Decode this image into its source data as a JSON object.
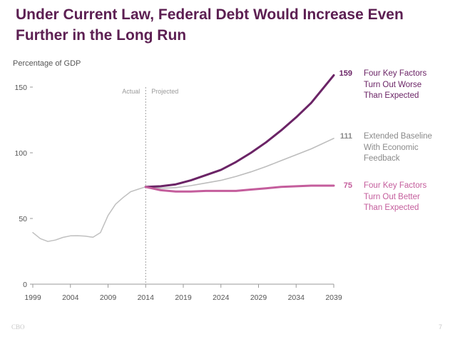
{
  "slide": {
    "title": "Under Current Law, Federal Debt Would Increase Even Further in the Long Run",
    "footer_left": "CBO",
    "page_number": "7"
  },
  "chart_data": {
    "type": "line",
    "title": "Under Current Law, Federal Debt Would Increase Even Further in the Long Run",
    "ylabel": "Percentage of GDP",
    "xlabel": "",
    "xlim": [
      1999,
      2039
    ],
    "ylim": [
      0,
      150
    ],
    "yticks": [
      0,
      50,
      100,
      150
    ],
    "xticks": [
      1999,
      2004,
      2009,
      2014,
      2019,
      2024,
      2029,
      2034,
      2039
    ],
    "divider_year": 2014,
    "period_labels": {
      "actual": "Actual",
      "projected": "Projected"
    },
    "series": [
      {
        "name": "Actual",
        "color": "#c0c0c0",
        "x": [
          1999,
          2000,
          2001,
          2002,
          2003,
          2004,
          2005,
          2006,
          2007,
          2008,
          2009,
          2010,
          2011,
          2012,
          2013,
          2014
        ],
        "values": [
          39.3,
          34.7,
          32.5,
          33.6,
          35.6,
          36.8,
          36.9,
          36.5,
          35.7,
          39.3,
          52.3,
          60.9,
          65.9,
          70.4,
          72.3,
          74.1
        ]
      },
      {
        "name": "Extended Baseline With Economic Feedback",
        "label": "Extended Baseline With Economic Feedback",
        "lines": [
          "Extended Baseline",
          "With Economic",
          "Feedback"
        ],
        "end_label": "111",
        "color": "#bdbdbd",
        "x": [
          2014,
          2016,
          2018,
          2020,
          2022,
          2024,
          2026,
          2028,
          2030,
          2032,
          2034,
          2036,
          2039
        ],
        "values": [
          74,
          73,
          73.5,
          75,
          77,
          79,
          82,
          85.5,
          89.5,
          94,
          98.5,
          103,
          111
        ]
      },
      {
        "name": "Four Key Factors Turn Out Worse Than Expected",
        "label": "Four Key Factors Turn Out Worse Than Expected",
        "lines": [
          "Four Key Factors",
          "Turn Out Worse",
          "Than Expected"
        ],
        "end_label": "159",
        "color": "#6b2466",
        "x": [
          2014,
          2016,
          2018,
          2020,
          2022,
          2024,
          2026,
          2028,
          2030,
          2032,
          2034,
          2036,
          2039
        ],
        "values": [
          74,
          74.5,
          76,
          79,
          83,
          87,
          93,
          100,
          108,
          117,
          127,
          138,
          159
        ]
      },
      {
        "name": "Four Key Factors Turn Out Better Than Expected",
        "label": "Four Key Factors Turn Out Better Than Expected",
        "lines": [
          "Four Key Factors",
          "Turn Out Better",
          "Than Expected"
        ],
        "end_label": "75",
        "color": "#c45d9c",
        "x": [
          2014,
          2016,
          2018,
          2020,
          2022,
          2024,
          2026,
          2028,
          2030,
          2032,
          2034,
          2036,
          2039
        ],
        "values": [
          74,
          71.5,
          70.5,
          70.5,
          71,
          71,
          71,
          72,
          73,
          74,
          74.5,
          75,
          75
        ]
      }
    ]
  }
}
